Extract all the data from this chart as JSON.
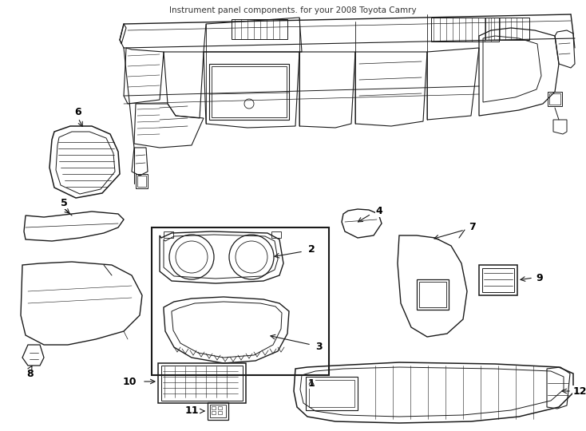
{
  "title": "Instrument panel components. for your 2008 Toyota Camry",
  "bg": "#ffffff",
  "lc": "#1a1a1a",
  "fig_w": 7.34,
  "fig_h": 5.4,
  "dpi": 100,
  "xlim": [
    0,
    734
  ],
  "ylim": [
    0,
    540
  ]
}
